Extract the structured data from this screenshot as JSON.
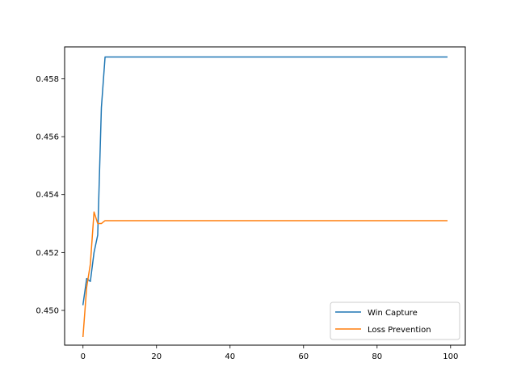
{
  "chart_data": {
    "type": "line",
    "title": "",
    "xlabel": "",
    "ylabel": "",
    "xlim": [
      -5,
      104
    ],
    "ylim": [
      0.4488,
      0.4591
    ],
    "xticks": [
      0,
      20,
      40,
      60,
      80,
      100
    ],
    "yticks": [
      0.45,
      0.452,
      0.454,
      0.456,
      0.458
    ],
    "ytick_labels": [
      "0.450",
      "0.452",
      "0.454",
      "0.456",
      "0.458"
    ],
    "grid": false,
    "legend_position": "lower-right",
    "series": [
      {
        "name": "Win Capture",
        "color": "#1f77b4",
        "points": [
          [
            0,
            0.4502
          ],
          [
            1,
            0.4511
          ],
          [
            2,
            0.451
          ],
          [
            3,
            0.452
          ],
          [
            4,
            0.4526
          ],
          [
            5,
            0.457
          ],
          [
            6,
            0.45875
          ],
          [
            99,
            0.45875
          ]
        ]
      },
      {
        "name": "Loss Prevention",
        "color": "#ff7f0e",
        "points": [
          [
            0,
            0.4491
          ],
          [
            1,
            0.4508
          ],
          [
            2,
            0.4516
          ],
          [
            3,
            0.4534
          ],
          [
            4,
            0.453
          ],
          [
            5,
            0.453
          ],
          [
            6,
            0.4531
          ],
          [
            99,
            0.4531
          ]
        ]
      }
    ]
  }
}
